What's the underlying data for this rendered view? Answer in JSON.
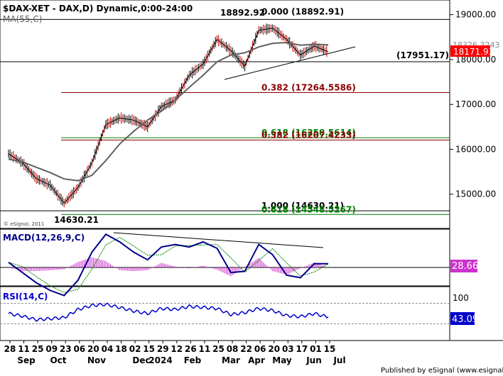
{
  "header": {
    "symbol_line": "$DAX-XET - DAX,D) Dynamic,0:00-24:00",
    "ma_label": "MA(55,C)"
  },
  "price_labels": {
    "high_value": "18892.92",
    "last_value_upper": "18326.3243",
    "last_value": "18171.93",
    "low_value": "14630.21",
    "watermark": "© eSignal, 2011"
  },
  "fib_labels": [
    {
      "text": "0.000 (18892.91)",
      "value": 18892.91,
      "color": "#000000"
    },
    {
      "text": "(17951.17)",
      "value": 17951.17,
      "color": "#000000"
    },
    {
      "text": "0.382 (17264.5586)",
      "value": 17264.5586,
      "color": "#8b0000"
    },
    {
      "text": "0.618 (16258.5614)",
      "value": 16258.5614,
      "color": "#008000"
    },
    {
      "text": "0.382 (16207.4233)",
      "value": 16207.4233,
      "color": "#8b0000"
    },
    {
      "text": "1.000 (14630.21)",
      "value": 14630.21,
      "color": "#000000"
    },
    {
      "text": "0.618 (14548.5267)",
      "value": 14548.5267,
      "color": "#008000"
    }
  ],
  "macd": {
    "label": "MACD(12,26,9,C)",
    "value": "28.66"
  },
  "rsi": {
    "label": "RSI(14,C)",
    "value": "43.09",
    "level_label": "100"
  },
  "x_axis": {
    "day_ticks": [
      "28",
      "11",
      "25",
      "09",
      "23",
      "06",
      "20",
      "04",
      "18",
      "02",
      "15",
      "29",
      "12",
      "26",
      "11",
      "25",
      "08",
      "22",
      "06",
      "20",
      "03",
      "17",
      "01",
      "15"
    ],
    "month_labels": [
      "Sep",
      "Oct",
      "Nov",
      "Dec",
      "2024",
      "Feb",
      "Mar",
      "Apr",
      "May",
      "Jun",
      "Jul"
    ]
  },
  "footer": "Published by eSignal (www.esignal.com)",
  "colors": {
    "price_line": "#000000",
    "ma": "#606060",
    "resistance": "#000000",
    "fib_red": "#8b0000",
    "fib_green": "#008000",
    "macd_line": "#00008b",
    "signal_line": "#008000",
    "histogram": "#cc33cc",
    "rsi": "#0000cc",
    "last_price_bg": "#ff0000",
    "macd_value_bg": "#cc33cc",
    "rsi_value_bg": "#0000cc"
  },
  "chart_data": [
    {
      "type": "line",
      "title": "$DAX-XET - DAX,D) Dynamic,0:00-24:00",
      "x": [
        "Aug 28",
        "Sep 11",
        "Sep 25",
        "Oct 09",
        "Oct 23",
        "Nov 06",
        "Nov 20",
        "Dec 04",
        "Dec 18",
        "Jan 02",
        "Jan 15",
        "Jan 29",
        "Feb 12",
        "Feb 26",
        "Mar 11",
        "Mar 25",
        "Apr 08",
        "Apr 22",
        "May 06",
        "May 20",
        "Jun 03",
        "Jun 17",
        "Jul 01",
        "Jul 15"
      ],
      "series": [
        {
          "name": "DAX close",
          "values": [
            15900,
            15700,
            15350,
            15200,
            14800,
            15150,
            15700,
            16550,
            16700,
            16650,
            16500,
            16950,
            17100,
            17650,
            17900,
            18450,
            18200,
            17850,
            18650,
            18700,
            18450,
            18100,
            18300,
            18171.93
          ]
        },
        {
          "name": "MA(55,C)",
          "values": [
            15780,
            15720,
            15600,
            15480,
            15340,
            15300,
            15420,
            15750,
            16120,
            16400,
            16650,
            16850,
            17100,
            17380,
            17650,
            17950,
            18100,
            18150,
            18280,
            18360,
            18380,
            18320,
            18340,
            18326.32
          ]
        }
      ],
      "ylim": [
        14300,
        19200
      ],
      "yticks": [
        15000,
        16000,
        17000,
        18000,
        19000
      ]
    },
    {
      "type": "line",
      "title": "MACD(12,26,9,C)",
      "series": [
        {
          "name": "MACD",
          "values": [
            40,
            -40,
            -120,
            -180,
            -220,
            -100,
            120,
            260,
            200,
            120,
            60,
            160,
            180,
            160,
            200,
            150,
            -40,
            -30,
            180,
            100,
            -60,
            -80,
            30,
            28.66
          ]
        }
      ]
    },
    {
      "type": "line",
      "title": "RSI(14,C)",
      "series": [
        {
          "name": "RSI",
          "values": [
            50,
            45,
            38,
            40,
            42,
            58,
            66,
            68,
            62,
            55,
            50,
            60,
            58,
            64,
            62,
            60,
            48,
            52,
            60,
            56,
            46,
            44,
            50,
            43.09
          ]
        }
      ],
      "ylim": [
        0,
        100
      ]
    }
  ]
}
